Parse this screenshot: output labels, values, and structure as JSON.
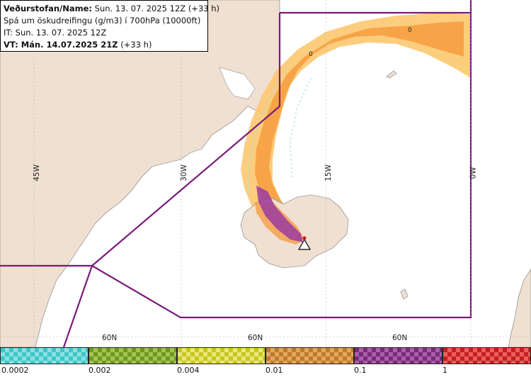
{
  "header": {
    "line1_label": "Veðurstofan/Name:",
    "line1_value": "Sun. 13. 07. 2025 12Z (+33 h)",
    "line2": "Spá um öskudreifingu (g/m3) í 700hPa (10000ft)",
    "line3": "IT: Sun. 13. 07. 2025 12Z",
    "line4_label": "VT: Mán. 14.07.2025 21Z",
    "line4_value": "(+33 h)"
  },
  "map": {
    "longitude_labels": [
      "45W",
      "30W",
      "15W",
      "0W"
    ],
    "latitude_labels": [
      "60N",
      "60N",
      "60N"
    ],
    "contour_labels": [
      "0",
      "0"
    ],
    "colors": {
      "land": "#efe0d2",
      "sea": "#ffffff",
      "boundary": "#7a1a7a",
      "ash_low": "#fdc870",
      "ash_mid": "#f59a3c",
      "ash_high": "#9b3aa0",
      "ash_trace": "#9fe3e6"
    },
    "source_marker": "volcano-triangle-icon"
  },
  "legend": {
    "bins": [
      {
        "color": "#3cc8c8",
        "alt": "#8ee0e0"
      },
      {
        "color": "#6e9a1e",
        "alt": "#a6c255"
      },
      {
        "color": "#c8c81e",
        "alt": "#e8e87a"
      },
      {
        "color": "#c27a28",
        "alt": "#e0a860"
      },
      {
        "color": "#7a2a7a",
        "alt": "#a860a8"
      },
      {
        "color": "#c81e1e",
        "alt": "#e86060"
      }
    ],
    "ticks": [
      "0.0002",
      "0.002",
      "0.004",
      "0.01",
      "0.1",
      "1"
    ]
  }
}
